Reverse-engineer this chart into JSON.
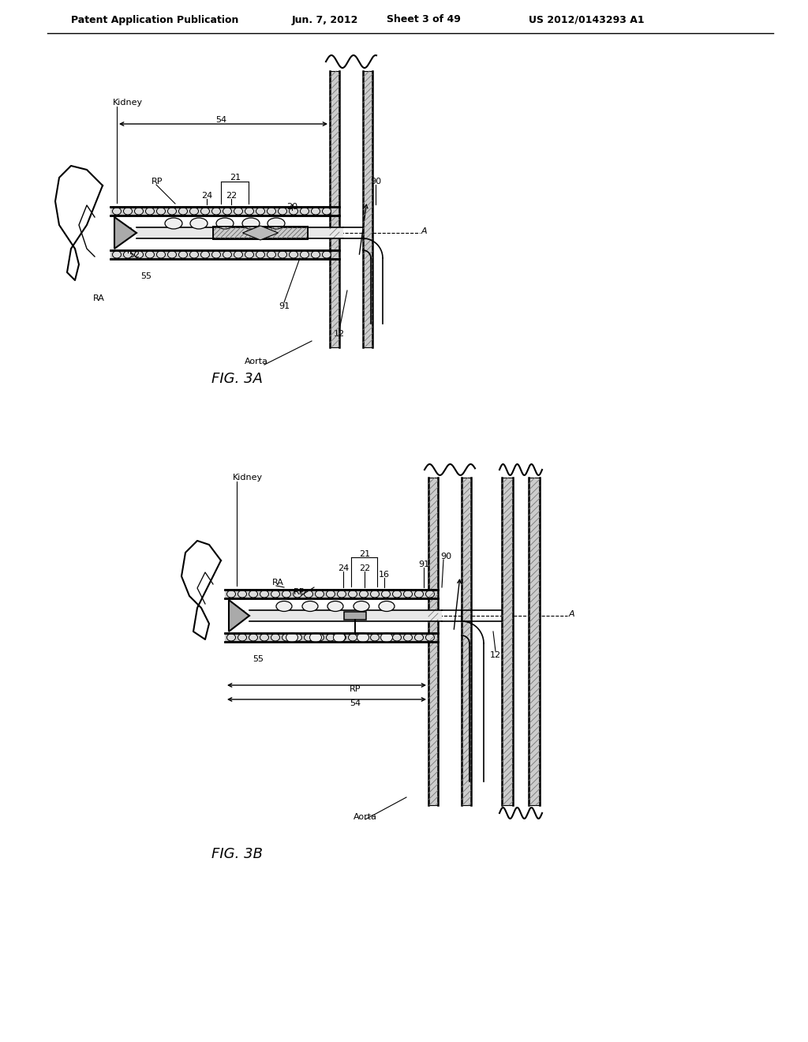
{
  "bg_color": "#ffffff",
  "header_text": "Patent Application Publication",
  "header_date": "Jun. 7, 2012",
  "header_sheet": "Sheet 3 of 49",
  "header_patent": "US 2012/0143293 A1",
  "fig3a_label": "FIG. 3A",
  "fig3b_label": "FIG. 3B"
}
